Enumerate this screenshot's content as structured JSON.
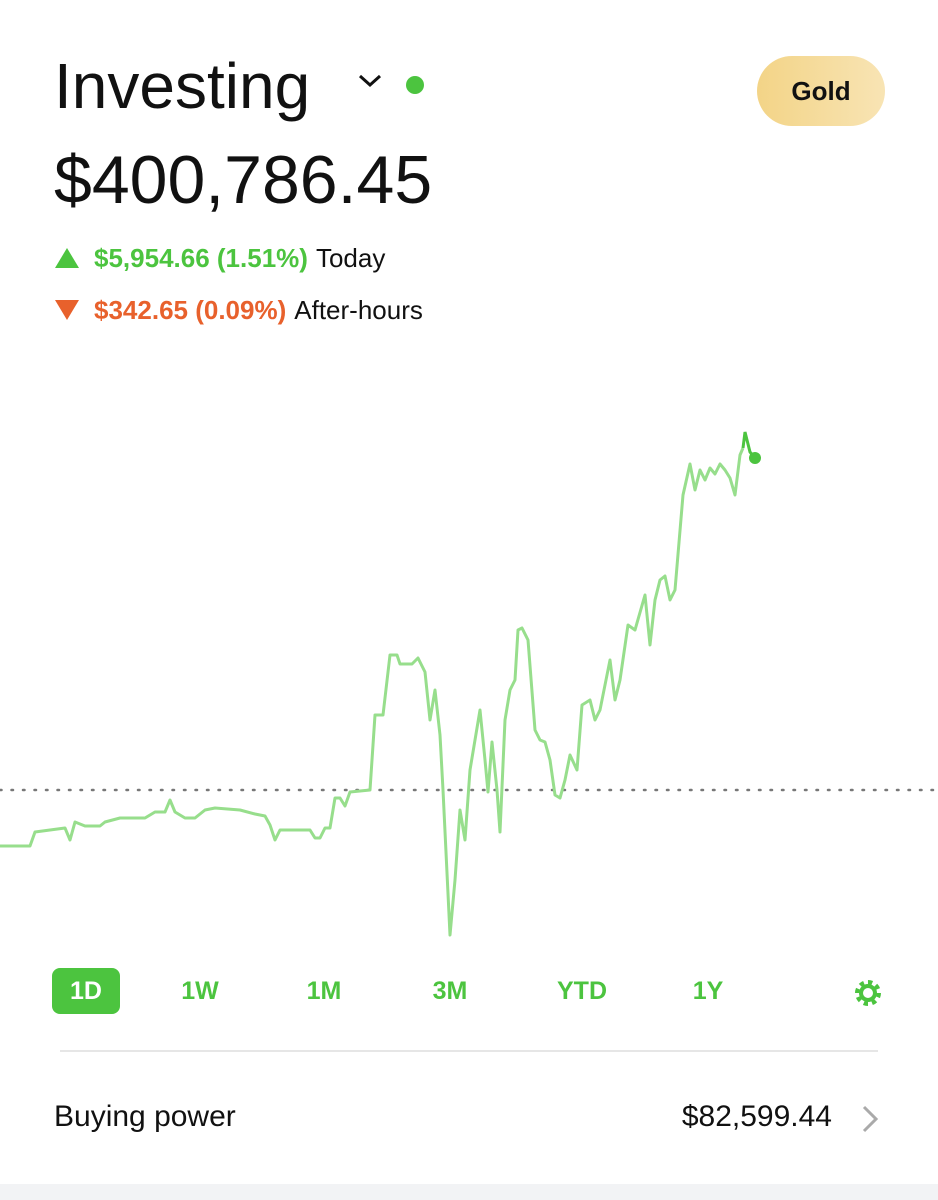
{
  "header": {
    "title": "Investing",
    "button": "Gold"
  },
  "balance": "$400,786.45",
  "today": {
    "change": "$5,954.66 (1.51%)",
    "label": "Today"
  },
  "after_hours": {
    "change": "$342.65 (0.09%)",
    "label": "After-hours"
  },
  "ranges": [
    "1D",
    "1W",
    "1M",
    "3M",
    "YTD",
    "1Y"
  ],
  "buying_power": {
    "label": "Buying power",
    "value": "$82,599.44"
  }
}
